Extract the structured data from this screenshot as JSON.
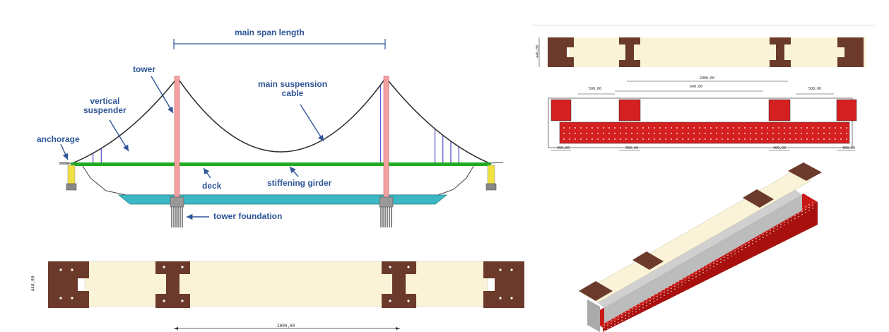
{
  "bridge": {
    "labels": {
      "main_span": "main span length",
      "tower": "tower",
      "vertical_suspender": "vertical\nsuspender",
      "main_cable": "main suspension\ncable",
      "anchorage": "anchorage",
      "deck": "deck",
      "stiffening_girder": "stiffening girder",
      "tower_foundation": "tower foundation"
    }
  },
  "plan_bottom": {
    "height_dim": "440,00",
    "length_dim": "2000,00"
  },
  "plan_top": {
    "height_dim": "440,00",
    "length_dim": "2000,00"
  },
  "section": {
    "dims_top": [
      "500,00",
      "640,00",
      "500,00"
    ],
    "dims_bottom": [
      "400,00",
      "400,00",
      "400,00",
      "400,00"
    ]
  },
  "colors": {
    "cable": "#333333",
    "suspender": "#5b5bd6",
    "deck": "#22aa22",
    "tower": "#f4a0a0",
    "water": "#3bb8c4",
    "anchorage": "#f0e040",
    "flange": "#6b3a2a",
    "web": "#fbf3d8",
    "steel_red": "#d42020",
    "label": "#2f5597"
  }
}
